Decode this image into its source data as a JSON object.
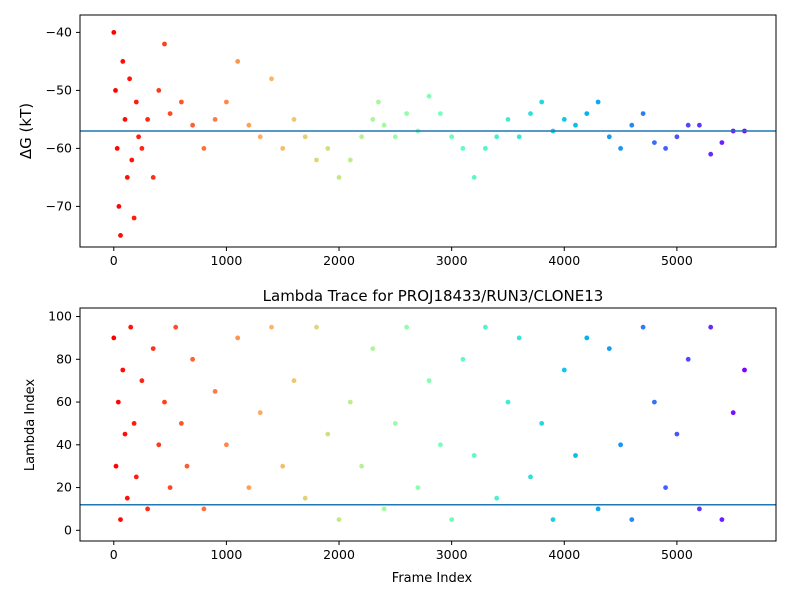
{
  "chart_data": [
    {
      "type": "scatter",
      "title": "",
      "xlabel": "",
      "ylabel": "ΔG (kT)",
      "xlim": [
        -300,
        5880
      ],
      "ylim": [
        -77,
        -37
      ],
      "xticks": [
        0,
        1000,
        2000,
        3000,
        4000,
        5000
      ],
      "yticks": [
        -70,
        -60,
        -50,
        -40
      ],
      "hline": -57,
      "hline_color": "#1f77b4",
      "colormap": "rainbow",
      "grid": false,
      "legend": "none",
      "series_points": [
        [
          0,
          -40
        ],
        [
          15,
          -50
        ],
        [
          30,
          -60
        ],
        [
          45,
          -70
        ],
        [
          60,
          -75
        ],
        [
          80,
          -45
        ],
        [
          100,
          -55
        ],
        [
          120,
          -65
        ],
        [
          140,
          -48
        ],
        [
          160,
          -62
        ],
        [
          180,
          -72
        ],
        [
          200,
          -52
        ],
        [
          220,
          -58
        ],
        [
          250,
          -60
        ],
        [
          300,
          -55
        ],
        [
          350,
          -65
        ],
        [
          400,
          -50
        ],
        [
          450,
          -42
        ],
        [
          500,
          -54
        ],
        [
          600,
          -52
        ],
        [
          700,
          -56
        ],
        [
          800,
          -60
        ],
        [
          900,
          -55
        ],
        [
          1000,
          -52
        ],
        [
          1100,
          -45
        ],
        [
          1200,
          -56
        ],
        [
          1300,
          -58
        ],
        [
          1400,
          -48
        ],
        [
          1500,
          -60
        ],
        [
          1600,
          -55
        ],
        [
          1700,
          -58
        ],
        [
          1800,
          -62
        ],
        [
          1900,
          -60
        ],
        [
          2000,
          -65
        ],
        [
          2100,
          -62
        ],
        [
          2200,
          -58
        ],
        [
          2300,
          -55
        ],
        [
          2350,
          -52
        ],
        [
          2400,
          -56
        ],
        [
          2500,
          -58
        ],
        [
          2600,
          -54
        ],
        [
          2700,
          -57
        ],
        [
          2800,
          -51
        ],
        [
          2900,
          -54
        ],
        [
          3000,
          -58
        ],
        [
          3100,
          -60
        ],
        [
          3200,
          -65
        ],
        [
          3300,
          -60
        ],
        [
          3400,
          -58
        ],
        [
          3500,
          -55
        ],
        [
          3600,
          -58
        ],
        [
          3700,
          -54
        ],
        [
          3800,
          -52
        ],
        [
          3900,
          -57
        ],
        [
          4000,
          -55
        ],
        [
          4100,
          -56
        ],
        [
          4200,
          -54
        ],
        [
          4300,
          -52
        ],
        [
          4400,
          -58
        ],
        [
          4500,
          -60
        ],
        [
          4600,
          -56
        ],
        [
          4700,
          -54
        ],
        [
          4800,
          -59
        ],
        [
          4900,
          -60
        ],
        [
          5000,
          -58
        ],
        [
          5100,
          -56
        ],
        [
          5200,
          -56
        ],
        [
          5300,
          -61
        ],
        [
          5400,
          -59
        ],
        [
          5500,
          -57
        ],
        [
          5600,
          -57
        ]
      ]
    },
    {
      "type": "scatter",
      "title": "Lambda Trace for PROJ18433/RUN3/CLONE13",
      "xlabel": "Frame Index",
      "ylabel": "Lambda Index",
      "xlim": [
        -300,
        5880
      ],
      "ylim": [
        -5,
        104
      ],
      "xticks": [
        0,
        1000,
        2000,
        3000,
        4000,
        5000
      ],
      "yticks": [
        0,
        20,
        40,
        60,
        80,
        100
      ],
      "hline": 12,
      "hline_color": "#1f77b4",
      "colormap": "rainbow",
      "grid": false,
      "legend": "none",
      "series_points": [
        [
          0,
          90
        ],
        [
          20,
          30
        ],
        [
          40,
          60
        ],
        [
          60,
          5
        ],
        [
          80,
          75
        ],
        [
          100,
          45
        ],
        [
          120,
          15
        ],
        [
          150,
          95
        ],
        [
          180,
          50
        ],
        [
          200,
          25
        ],
        [
          250,
          70
        ],
        [
          300,
          10
        ],
        [
          350,
          85
        ],
        [
          400,
          40
        ],
        [
          450,
          60
        ],
        [
          500,
          20
        ],
        [
          550,
          95
        ],
        [
          600,
          50
        ],
        [
          650,
          30
        ],
        [
          700,
          80
        ],
        [
          800,
          10
        ],
        [
          900,
          65
        ],
        [
          1000,
          40
        ],
        [
          1100,
          90
        ],
        [
          1200,
          20
        ],
        [
          1300,
          55
        ],
        [
          1400,
          95
        ],
        [
          1500,
          30
        ],
        [
          1600,
          70
        ],
        [
          1700,
          15
        ],
        [
          1800,
          95
        ],
        [
          1900,
          45
        ],
        [
          2000,
          5
        ],
        [
          2100,
          60
        ],
        [
          2200,
          30
        ],
        [
          2300,
          85
        ],
        [
          2400,
          10
        ],
        [
          2500,
          50
        ],
        [
          2600,
          95
        ],
        [
          2700,
          20
        ],
        [
          2800,
          70
        ],
        [
          2900,
          40
        ],
        [
          3000,
          5
        ],
        [
          3100,
          80
        ],
        [
          3200,
          35
        ],
        [
          3300,
          95
        ],
        [
          3400,
          15
        ],
        [
          3500,
          60
        ],
        [
          3600,
          90
        ],
        [
          3700,
          25
        ],
        [
          3800,
          50
        ],
        [
          3900,
          5
        ],
        [
          4000,
          75
        ],
        [
          4100,
          35
        ],
        [
          4200,
          90
        ],
        [
          4300,
          10
        ],
        [
          4400,
          85
        ],
        [
          4500,
          40
        ],
        [
          4600,
          5
        ],
        [
          4700,
          95
        ],
        [
          4800,
          60
        ],
        [
          4900,
          20
        ],
        [
          5000,
          45
        ],
        [
          5100,
          80
        ],
        [
          5200,
          10
        ],
        [
          5300,
          95
        ],
        [
          5400,
          5
        ],
        [
          5500,
          55
        ],
        [
          5600,
          75
        ]
      ]
    }
  ]
}
